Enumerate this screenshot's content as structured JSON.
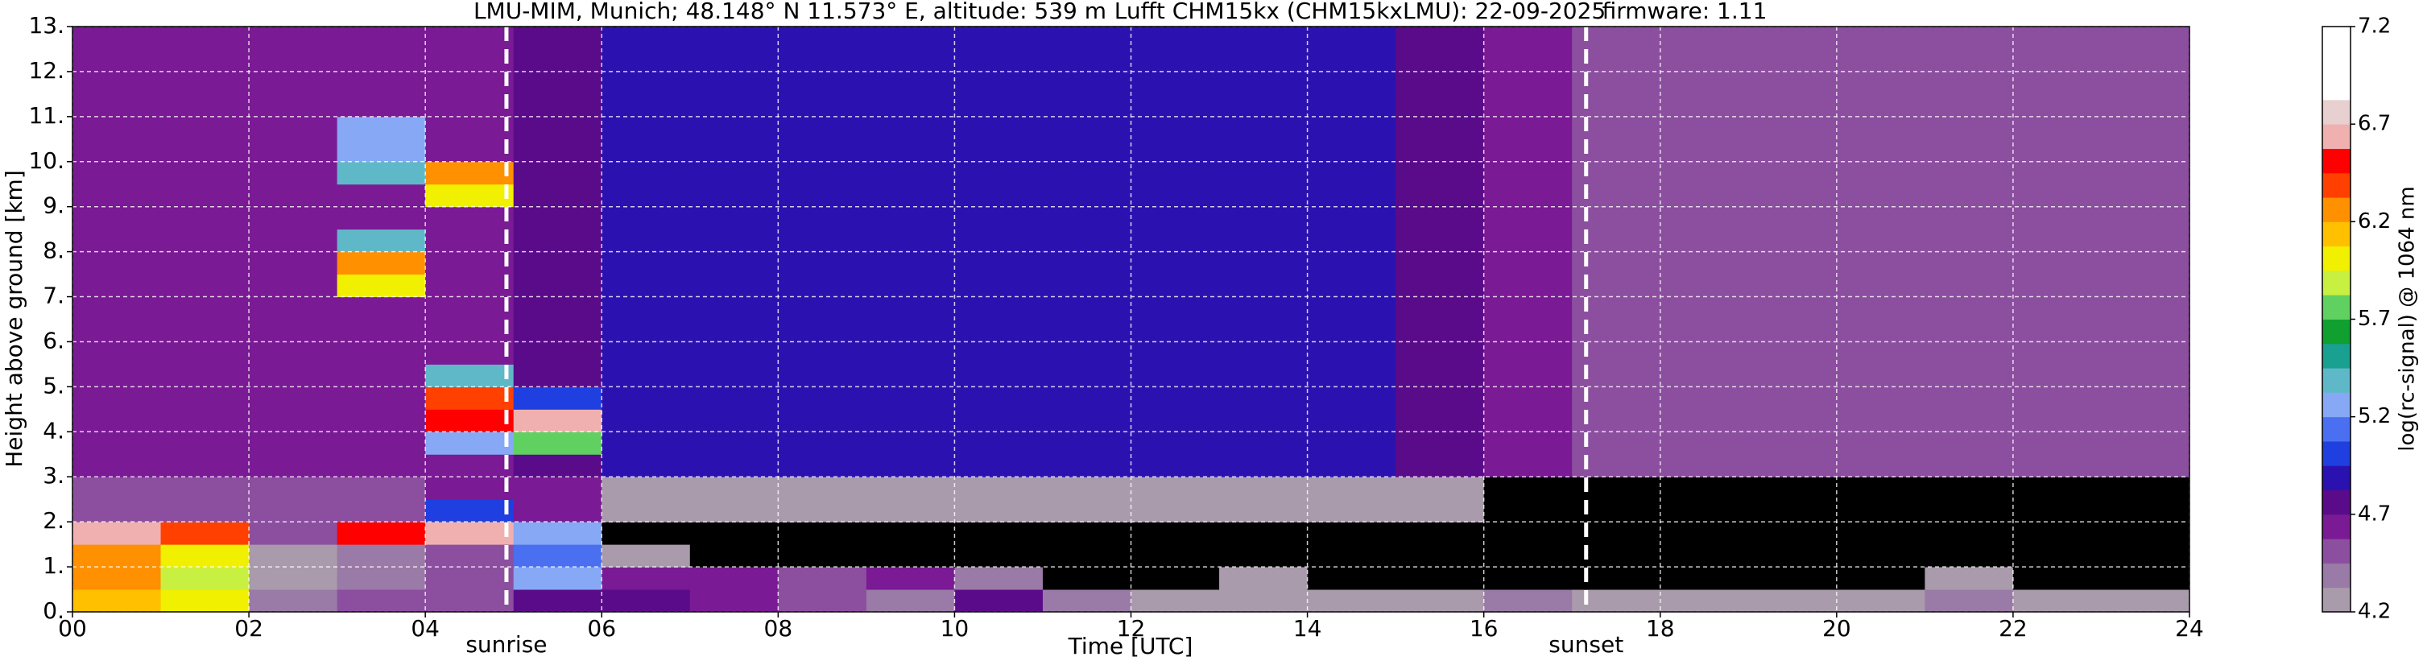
{
  "chart_data": {
    "type": "heatmap",
    "title_parts": [
      "LMU-MIM, Munich; 48.148° N 11.573° E, altitude: 539 m",
      "Lufft CHM15kx (CHM15kxLMU): 22-09-2025",
      "firmware: 1.11"
    ],
    "x_label": "Time [UTC]",
    "y_label": "Height above ground [km]",
    "xlim": [
      0,
      24
    ],
    "ylim": [
      0,
      13
    ],
    "xticks": [
      {
        "value": 0,
        "label": "00"
      },
      {
        "value": 2,
        "label": "02"
      },
      {
        "value": 4,
        "label": "04"
      },
      {
        "value": 6,
        "label": "06"
      },
      {
        "value": 8,
        "label": "08"
      },
      {
        "value": 10,
        "label": "10"
      },
      {
        "value": 12,
        "label": "12"
      },
      {
        "value": 14,
        "label": "14"
      },
      {
        "value": 16,
        "label": "16"
      },
      {
        "value": 18,
        "label": "18"
      },
      {
        "value": 20,
        "label": "20"
      },
      {
        "value": 22,
        "label": "22"
      },
      {
        "value": 24,
        "label": "24"
      }
    ],
    "yticks": [
      {
        "value": 0,
        "label": "0."
      },
      {
        "value": 1,
        "label": "1."
      },
      {
        "value": 2,
        "label": "2."
      },
      {
        "value": 3,
        "label": "3."
      },
      {
        "value": 4,
        "label": "4."
      },
      {
        "value": 5,
        "label": "5."
      },
      {
        "value": 6,
        "label": "6."
      },
      {
        "value": 7,
        "label": "7."
      },
      {
        "value": 8,
        "label": "8."
      },
      {
        "value": 9,
        "label": "9."
      },
      {
        "value": 10,
        "label": "10."
      },
      {
        "value": 11,
        "label": "11."
      },
      {
        "value": 12,
        "label": "12."
      },
      {
        "value": 13,
        "label": "13."
      }
    ],
    "grid": true,
    "annotations": [
      {
        "x": 4.92,
        "label": "sunrise"
      },
      {
        "x": 17.16,
        "label": "sunset"
      }
    ],
    "colorbar": {
      "label": "log(rc-signal) @ 1064 nm",
      "lim": [
        4.2,
        7.2
      ],
      "ticks": [
        4.2,
        4.7,
        5.2,
        5.7,
        6.2,
        6.7,
        7.2
      ],
      "under_color": "#000000",
      "over_color": "#ffffff",
      "colors": [
        "#a99bab",
        "#9a7aa6",
        "#8c4fa0",
        "#7a1a94",
        "#5a0b8a",
        "#2b12b0",
        "#1f3fe0",
        "#4a6ff0",
        "#86a8f5",
        "#5fb8c8",
        "#1aa090",
        "#10a030",
        "#60d060",
        "#c8f040",
        "#f0f000",
        "#ffc000",
        "#ff9000",
        "#ff4000",
        "#ff0000",
        "#f0b0b0",
        "#e8d0d0",
        "#ffffff",
        "#ffffff",
        "#ffffff"
      ]
    },
    "x": [
      0.5,
      1.5,
      2.5,
      3.5,
      4.5,
      5.5,
      6.5,
      7.5,
      8.5,
      9.5,
      10.5,
      11.5,
      12.5,
      13.5,
      14.5,
      15.5,
      16.5,
      17.5,
      18.5,
      19.5,
      20.5,
      21.5,
      22.5,
      23.5
    ],
    "y": [
      0.25,
      0.75,
      1.25,
      1.75,
      2.25,
      2.75,
      3.25,
      3.75,
      4.25,
      4.75,
      5.25,
      5.75,
      6.25,
      6.75,
      7.25,
      7.75,
      8.25,
      8.75,
      9.25,
      9.75,
      10.25,
      10.75,
      11.25,
      11.75,
      12.25,
      12.75
    ],
    "z": [
      [
        6.1,
        6.0,
        4.4,
        4.5,
        4.5,
        4.8,
        4.7,
        4.6,
        4.5,
        4.4,
        4.8,
        4.4,
        4.3,
        4.3,
        4.3,
        4.3,
        4.4,
        4.3,
        4.3,
        4.3,
        4.3,
        4.4,
        4.3,
        4.3
      ],
      [
        6.3,
        5.9,
        4.3,
        4.4,
        4.5,
        5.3,
        4.6,
        4.6,
        4.5,
        4.6,
        4.4,
        4.1,
        4.1,
        4.2,
        4.1,
        4.0,
        4.0,
        4.0,
        4.0,
        4.0,
        4.0,
        4.2,
        4.0,
        4.0
      ],
      [
        6.2,
        6.0,
        4.3,
        4.4,
        4.5,
        5.1,
        4.2,
        4.1,
        4.0,
        4.0,
        4.0,
        4.0,
        4.0,
        4.0,
        4.0,
        4.0,
        4.0,
        4.0,
        4.0,
        4.0,
        4.0,
        4.0,
        4.0,
        4.0
      ],
      [
        6.6,
        6.4,
        4.5,
        6.5,
        6.6,
        5.2,
        4.1,
        4.0,
        4.0,
        4.0,
        4.0,
        4.0,
        4.0,
        4.0,
        4.0,
        4.0,
        4.0,
        4.0,
        4.0,
        4.0,
        4.0,
        4.0,
        4.0,
        4.0
      ],
      [
        4.5,
        4.5,
        4.5,
        4.5,
        5.0,
        4.6,
        4.3,
        4.3,
        4.3,
        4.3,
        4.3,
        4.3,
        4.3,
        4.3,
        4.3,
        4.2,
        4.1,
        4.1,
        4.1,
        4.1,
        4.1,
        4.1,
        4.1,
        4.1
      ],
      [
        4.5,
        4.5,
        4.5,
        4.5,
        4.6,
        4.6,
        4.3,
        4.3,
        4.3,
        4.3,
        4.3,
        4.3,
        4.3,
        4.3,
        4.3,
        4.2,
        4.1,
        4.1,
        4.1,
        4.1,
        4.1,
        4.1,
        4.1,
        4.1
      ],
      [
        4.6,
        4.6,
        4.6,
        4.6,
        4.6,
        4.8,
        4.9,
        4.9,
        4.9,
        4.9,
        4.9,
        4.9,
        4.9,
        4.9,
        4.9,
        4.8,
        4.6,
        4.5,
        4.5,
        4.5,
        4.5,
        4.5,
        4.5,
        4.5
      ],
      [
        4.6,
        4.6,
        4.6,
        4.6,
        5.3,
        5.8,
        4.9,
        4.9,
        4.9,
        4.9,
        4.9,
        4.9,
        4.9,
        4.9,
        4.9,
        4.8,
        4.6,
        4.5,
        4.5,
        4.5,
        4.5,
        4.5,
        4.5,
        4.5
      ],
      [
        4.6,
        4.6,
        4.6,
        4.6,
        6.5,
        6.6,
        4.9,
        4.9,
        4.9,
        4.9,
        4.9,
        4.9,
        4.9,
        4.9,
        4.9,
        4.8,
        4.6,
        4.5,
        4.5,
        4.5,
        4.5,
        4.5,
        4.5,
        4.5
      ],
      [
        4.6,
        4.6,
        4.6,
        4.6,
        6.4,
        5.0,
        4.9,
        4.9,
        4.9,
        4.9,
        4.9,
        4.9,
        4.9,
        4.9,
        4.9,
        4.8,
        4.6,
        4.5,
        4.5,
        4.5,
        4.5,
        4.5,
        4.5,
        4.5
      ],
      [
        4.6,
        4.6,
        4.6,
        4.6,
        5.4,
        4.8,
        4.9,
        4.9,
        4.9,
        4.9,
        4.9,
        4.9,
        4.9,
        4.9,
        4.9,
        4.8,
        4.6,
        4.5,
        4.5,
        4.5,
        4.5,
        4.5,
        4.5,
        4.5
      ],
      [
        4.6,
        4.6,
        4.6,
        4.6,
        4.6,
        4.8,
        4.9,
        4.9,
        4.9,
        4.9,
        4.9,
        4.9,
        4.9,
        4.9,
        4.9,
        4.8,
        4.6,
        4.5,
        4.5,
        4.5,
        4.5,
        4.5,
        4.5,
        4.5
      ],
      [
        4.6,
        4.6,
        4.6,
        4.6,
        4.6,
        4.8,
        4.9,
        4.9,
        4.9,
        4.9,
        4.9,
        4.9,
        4.9,
        4.9,
        4.9,
        4.8,
        4.6,
        4.5,
        4.5,
        4.5,
        4.5,
        4.5,
        4.5,
        4.5
      ],
      [
        4.6,
        4.6,
        4.6,
        4.6,
        4.6,
        4.8,
        4.9,
        4.9,
        4.9,
        4.9,
        4.9,
        4.9,
        4.9,
        4.9,
        4.9,
        4.8,
        4.6,
        4.5,
        4.5,
        4.5,
        4.5,
        4.5,
        4.5,
        4.5
      ],
      [
        4.6,
        4.6,
        4.6,
        6.0,
        4.6,
        4.8,
        4.9,
        4.9,
        4.9,
        4.9,
        4.9,
        4.9,
        4.9,
        4.9,
        4.9,
        4.8,
        4.6,
        4.5,
        4.5,
        4.5,
        4.5,
        4.5,
        4.5,
        4.5
      ],
      [
        4.6,
        4.6,
        4.6,
        6.3,
        4.6,
        4.8,
        4.9,
        4.9,
        4.9,
        4.9,
        4.9,
        4.9,
        4.9,
        4.9,
        4.9,
        4.8,
        4.6,
        4.5,
        4.5,
        4.5,
        4.5,
        4.5,
        4.5,
        4.5
      ],
      [
        4.6,
        4.6,
        4.6,
        5.4,
        4.6,
        4.8,
        4.9,
        4.9,
        4.9,
        4.9,
        4.9,
        4.9,
        4.9,
        4.9,
        4.9,
        4.8,
        4.6,
        4.5,
        4.5,
        4.5,
        4.5,
        4.5,
        4.5,
        4.5
      ],
      [
        4.6,
        4.6,
        4.6,
        4.6,
        4.6,
        4.8,
        4.9,
        4.9,
        4.9,
        4.9,
        4.9,
        4.9,
        4.9,
        4.9,
        4.9,
        4.8,
        4.6,
        4.5,
        4.5,
        4.5,
        4.5,
        4.5,
        4.5,
        4.5
      ],
      [
        4.6,
        4.6,
        4.6,
        4.6,
        6.0,
        4.8,
        4.9,
        4.9,
        4.9,
        4.9,
        4.9,
        4.9,
        4.9,
        4.9,
        4.9,
        4.8,
        4.6,
        4.5,
        4.5,
        4.5,
        4.5,
        4.5,
        4.5,
        4.5
      ],
      [
        4.6,
        4.6,
        4.6,
        5.4,
        6.3,
        4.8,
        4.9,
        4.9,
        4.9,
        4.9,
        4.9,
        4.9,
        4.9,
        4.9,
        4.9,
        4.8,
        4.6,
        4.5,
        4.5,
        4.5,
        4.5,
        4.5,
        4.5,
        4.5
      ],
      [
        4.6,
        4.6,
        4.6,
        5.3,
        4.6,
        4.8,
        4.9,
        4.9,
        4.9,
        4.9,
        4.9,
        4.9,
        4.9,
        4.9,
        4.9,
        4.8,
        4.6,
        4.5,
        4.5,
        4.5,
        4.5,
        4.5,
        4.5,
        4.5
      ],
      [
        4.6,
        4.6,
        4.6,
        5.2,
        4.6,
        4.8,
        4.9,
        4.9,
        4.9,
        4.9,
        4.9,
        4.9,
        4.9,
        4.9,
        4.9,
        4.8,
        4.6,
        4.5,
        4.5,
        4.5,
        4.5,
        4.5,
        4.5,
        4.5
      ],
      [
        4.6,
        4.6,
        4.6,
        4.6,
        4.6,
        4.8,
        4.9,
        4.9,
        4.9,
        4.9,
        4.9,
        4.9,
        4.9,
        4.9,
        4.9,
        4.8,
        4.6,
        4.5,
        4.5,
        4.5,
        4.5,
        4.5,
        4.5,
        4.5
      ],
      [
        4.6,
        4.6,
        4.6,
        4.6,
        4.6,
        4.8,
        4.9,
        4.9,
        4.9,
        4.9,
        4.9,
        4.9,
        4.9,
        4.9,
        4.9,
        4.8,
        4.6,
        4.5,
        4.5,
        4.5,
        4.5,
        4.5,
        4.5,
        4.5
      ],
      [
        4.6,
        4.6,
        4.6,
        4.6,
        4.6,
        4.8,
        4.9,
        4.9,
        4.9,
        4.9,
        4.9,
        4.9,
        4.9,
        4.9,
        4.9,
        4.8,
        4.6,
        4.5,
        4.5,
        4.5,
        4.5,
        4.5,
        4.5,
        4.5
      ],
      [
        4.6,
        4.6,
        4.6,
        4.6,
        4.6,
        4.8,
        4.9,
        4.9,
        4.9,
        4.9,
        4.9,
        4.9,
        4.9,
        4.9,
        4.9,
        4.8,
        4.6,
        4.5,
        4.5,
        4.5,
        4.5,
        4.5,
        4.5,
        4.5
      ]
    ]
  }
}
